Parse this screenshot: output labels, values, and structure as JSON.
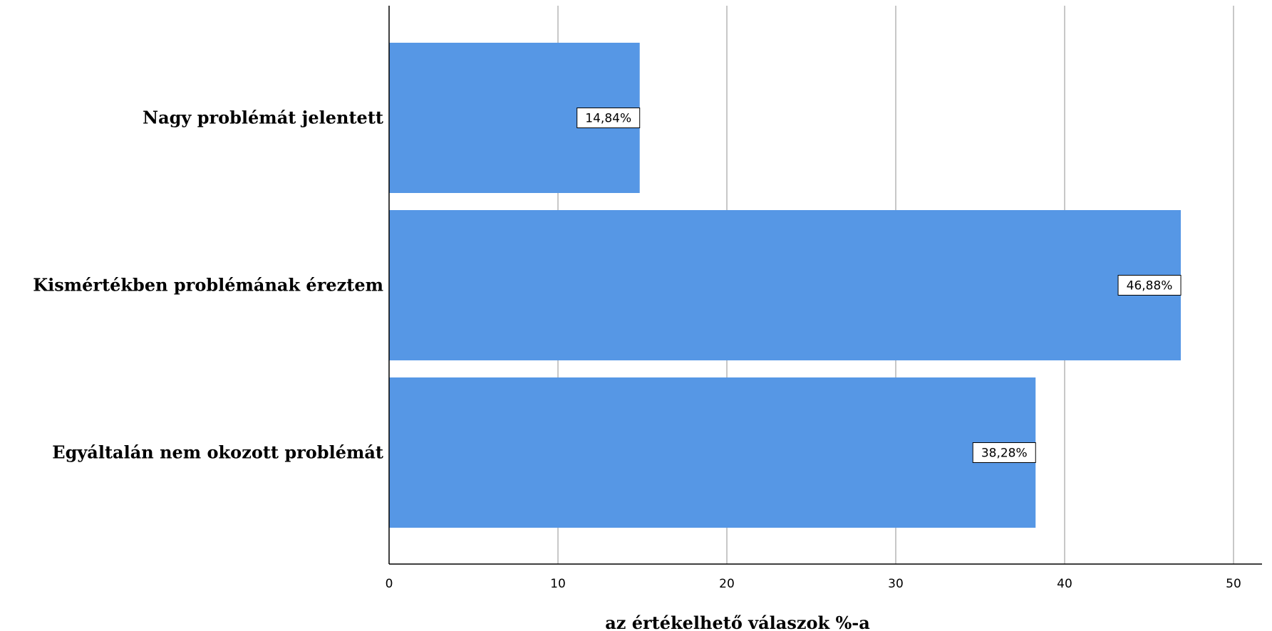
{
  "chart_data": {
    "type": "bar",
    "orientation": "horizontal",
    "categories": [
      "Nagy problémát jelentett",
      "Kismértékben problémának éreztem",
      "Egyáltalán nem okozott problémát"
    ],
    "values": [
      14.84,
      46.88,
      38.28
    ],
    "data_labels": [
      "14,84%",
      "46,88%",
      "38,28%"
    ],
    "xlabel": "az értékelhető válaszok %-a",
    "xlim": [
      0,
      50
    ],
    "xticks": [
      0,
      10,
      20,
      30,
      40,
      50
    ],
    "xtick_labels": [
      "0",
      "10",
      "20",
      "30",
      "40",
      "50"
    ],
    "grid": true,
    "bar_color": "#5697e5"
  }
}
